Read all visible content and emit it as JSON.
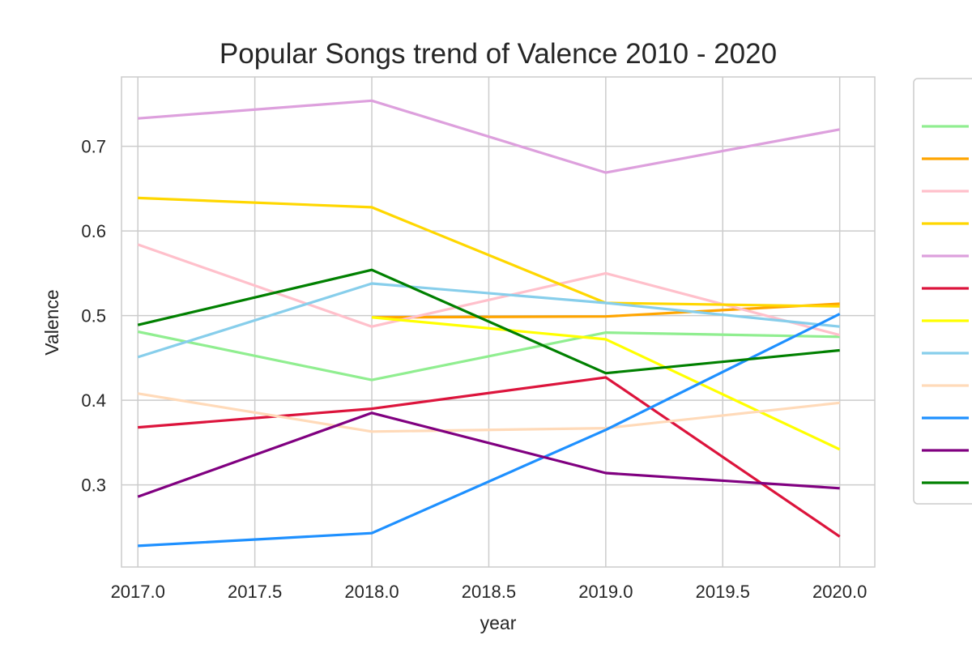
{
  "chart_data": {
    "type": "line",
    "title": "Popular Songs trend of Valence 2010 - 2020",
    "xlabel": "year",
    "ylabel": "Valence",
    "xlim": [
      2016.93,
      2020.15
    ],
    "ylim": [
      0.203,
      0.782
    ],
    "xticks": [
      2017.0,
      2017.5,
      2018.0,
      2018.5,
      2019.0,
      2019.5,
      2020.0
    ],
    "xtick_labels": [
      "2017.0",
      "2017.5",
      "2018.0",
      "2018.5",
      "2019.0",
      "2019.5",
      "2020.0"
    ],
    "yticks": [
      0.3,
      0.4,
      0.5,
      0.6,
      0.7
    ],
    "ytick_labels": [
      "0.3",
      "0.4",
      "0.5",
      "0.6",
      "0.7"
    ],
    "grid": true,
    "legend_position": "outside-right",
    "series": [
      {
        "color": "#90ee90",
        "points": [
          [
            2017,
            0.481
          ],
          [
            2018,
            0.424
          ],
          [
            2019,
            0.48
          ],
          [
            2020,
            0.475
          ]
        ]
      },
      {
        "color": "#ffa500",
        "points": [
          [
            2018,
            0.498
          ],
          [
            2019,
            0.499
          ],
          [
            2020,
            0.514
          ]
        ]
      },
      {
        "color": "#ffc0cb",
        "points": [
          [
            2017,
            0.584
          ],
          [
            2018,
            0.487
          ],
          [
            2019,
            0.55
          ],
          [
            2020,
            0.477
          ]
        ]
      },
      {
        "color": "#ffd700",
        "points": [
          [
            2017,
            0.639
          ],
          [
            2018,
            0.628
          ],
          [
            2019,
            0.515
          ],
          [
            2020,
            0.511
          ]
        ]
      },
      {
        "color": "#dda0dd",
        "points": [
          [
            2017,
            0.733
          ],
          [
            2018,
            0.754
          ],
          [
            2019,
            0.669
          ],
          [
            2020,
            0.72
          ]
        ]
      },
      {
        "color": "#dc143c",
        "points": [
          [
            2017,
            0.368
          ],
          [
            2018,
            0.39
          ],
          [
            2019,
            0.427
          ],
          [
            2020,
            0.239
          ]
        ]
      },
      {
        "color": "#ffff00",
        "points": [
          [
            2018,
            0.498
          ],
          [
            2019,
            0.472
          ],
          [
            2020,
            0.342
          ]
        ]
      },
      {
        "color": "#87ceeb",
        "points": [
          [
            2017,
            0.451
          ],
          [
            2018,
            0.538
          ],
          [
            2019,
            0.515
          ],
          [
            2020,
            0.487
          ]
        ]
      },
      {
        "color": "#ffdab9",
        "points": [
          [
            2017,
            0.408
          ],
          [
            2018,
            0.363
          ],
          [
            2019,
            0.367
          ],
          [
            2020,
            0.397
          ]
        ]
      },
      {
        "color": "#1e90ff",
        "points": [
          [
            2017,
            0.228
          ],
          [
            2018,
            0.243
          ],
          [
            2019,
            0.365
          ],
          [
            2020,
            0.502
          ]
        ]
      },
      {
        "color": "#800080",
        "points": [
          [
            2017,
            0.286
          ],
          [
            2018,
            0.385
          ],
          [
            2019,
            0.314
          ],
          [
            2020,
            0.296
          ]
        ]
      },
      {
        "color": "#008000",
        "points": [
          [
            2017,
            0.489
          ],
          [
            2018,
            0.554
          ],
          [
            2019,
            0.432
          ],
          [
            2020,
            0.459
          ]
        ]
      }
    ]
  }
}
